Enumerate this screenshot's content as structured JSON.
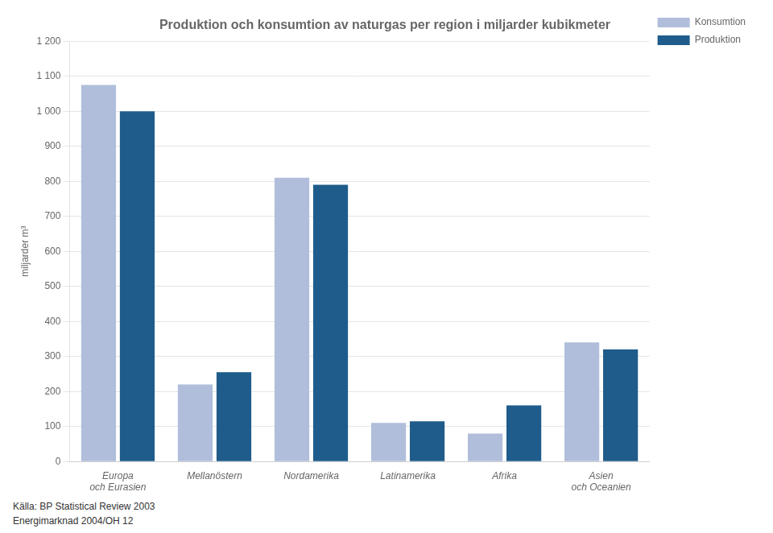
{
  "chart_data": {
    "type": "bar",
    "title": "Produktion och konsumtion av naturgas per region i miljarder kubikmeter",
    "ylabel": "miljarder m³",
    "categories": [
      "Europa\noch Eurasien",
      "Mellanöstern",
      "Nordamerika",
      "Latinamerika",
      "Afrika",
      "Asien\noch Oceanien"
    ],
    "series": [
      {
        "name": "Konsumtion",
        "color": "#B0BEDB",
        "values": [
          1075,
          220,
          810,
          110,
          80,
          340
        ]
      },
      {
        "name": "Produktion",
        "color": "#1F5C8B",
        "values": [
          1000,
          255,
          790,
          115,
          160,
          320
        ]
      }
    ],
    "ylim": [
      0,
      1200
    ],
    "yticks": [
      0,
      100,
      200,
      300,
      400,
      500,
      600,
      700,
      800,
      900,
      {
        "value": 1000,
        "label": "1 000"
      },
      {
        "value": 1100,
        "label": "1 100"
      },
      {
        "value": 1200,
        "label": "1 200"
      }
    ],
    "grid": true,
    "legend": "right",
    "annotations": [
      "Källa: BP Statistical Review 2003",
      "Energimarknad 2004/OH 12"
    ]
  }
}
